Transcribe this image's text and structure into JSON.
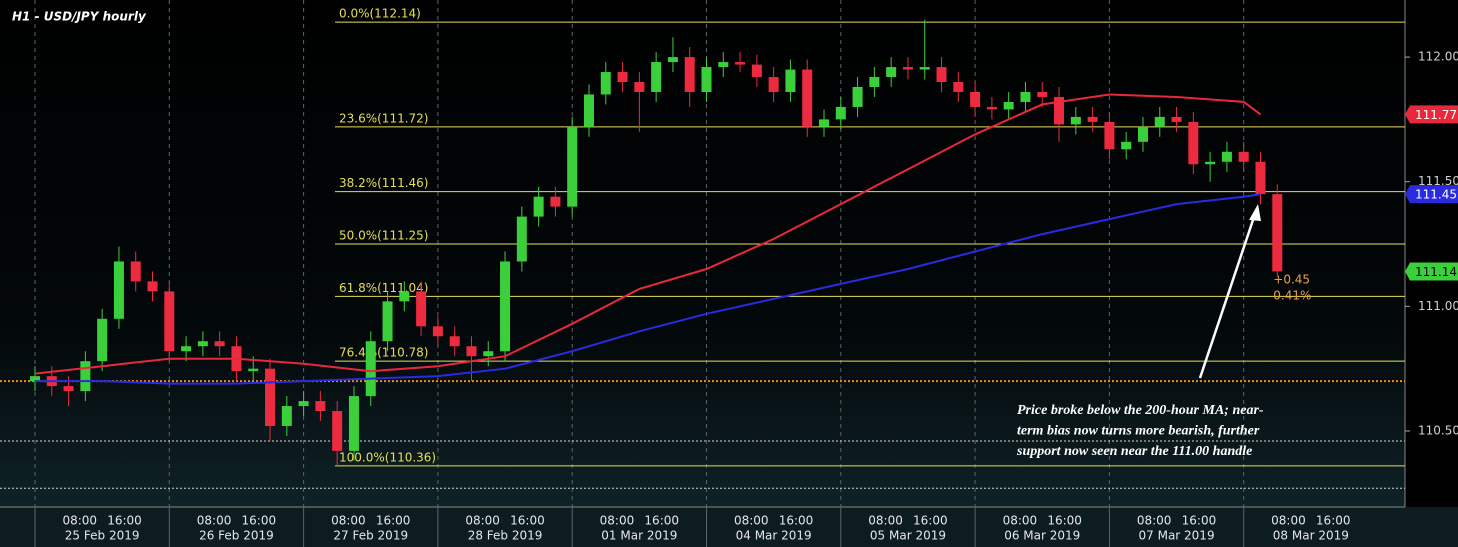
{
  "chart_data": {
    "type": "candlestick",
    "title": "H1 - USD/JPY hourly",
    "days": [
      "25 Feb 2019",
      "26 Feb 2019",
      "27 Feb 2019",
      "28 Feb 2019",
      "01 Mar 2019",
      "04 Mar 2019",
      "05 Mar 2019",
      "06 Mar 2019",
      "07 Mar 2019",
      "08 Mar 2019"
    ],
    "hour_ticks": [
      "08:00",
      "16:00"
    ],
    "x": [
      "25 Feb 2019 00:00",
      "25 Feb 2019 03:00",
      "25 Feb 2019 06:00",
      "25 Feb 2019 09:00",
      "25 Feb 2019 12:00",
      "25 Feb 2019 15:00",
      "25 Feb 2019 18:00",
      "25 Feb 2019 21:00",
      "26 Feb 2019 00:00",
      "26 Feb 2019 03:00",
      "26 Feb 2019 06:00",
      "26 Feb 2019 09:00",
      "26 Feb 2019 12:00",
      "26 Feb 2019 15:00",
      "26 Feb 2019 18:00",
      "26 Feb 2019 21:00",
      "27 Feb 2019 00:00",
      "27 Feb 2019 03:00",
      "27 Feb 2019 06:00",
      "27 Feb 2019 09:00",
      "27 Feb 2019 12:00",
      "27 Feb 2019 15:00",
      "27 Feb 2019 18:00",
      "27 Feb 2019 21:00",
      "28 Feb 2019 00:00",
      "28 Feb 2019 03:00",
      "28 Feb 2019 06:00",
      "28 Feb 2019 09:00",
      "28 Feb 2019 12:00",
      "28 Feb 2019 15:00",
      "28 Feb 2019 18:00",
      "28 Feb 2019 21:00",
      "01 Mar 2019 00:00",
      "01 Mar 2019 03:00",
      "01 Mar 2019 06:00",
      "01 Mar 2019 09:00",
      "01 Mar 2019 12:00",
      "01 Mar 2019 15:00",
      "01 Mar 2019 18:00",
      "01 Mar 2019 21:00",
      "04 Mar 2019 00:00",
      "04 Mar 2019 03:00",
      "04 Mar 2019 06:00",
      "04 Mar 2019 09:00",
      "04 Mar 2019 12:00",
      "04 Mar 2019 15:00",
      "04 Mar 2019 18:00",
      "04 Mar 2019 21:00",
      "05 Mar 2019 00:00",
      "05 Mar 2019 03:00",
      "05 Mar 2019 06:00",
      "05 Mar 2019 09:00",
      "05 Mar 2019 12:00",
      "05 Mar 2019 15:00",
      "05 Mar 2019 18:00",
      "05 Mar 2019 21:00",
      "06 Mar 2019 00:00",
      "06 Mar 2019 03:00",
      "06 Mar 2019 06:00",
      "06 Mar 2019 09:00",
      "06 Mar 2019 12:00",
      "06 Mar 2019 15:00",
      "06 Mar 2019 18:00",
      "06 Mar 2019 21:00",
      "07 Mar 2019 00:00",
      "07 Mar 2019 03:00",
      "07 Mar 2019 06:00",
      "07 Mar 2019 09:00",
      "07 Mar 2019 12:00",
      "07 Mar 2019 15:00",
      "07 Mar 2019 18:00",
      "07 Mar 2019 21:00",
      "08 Mar 2019 00:00",
      "08 Mar 2019 03:00",
      "08 Mar 2019 06:00"
    ],
    "open": [
      110.7,
      110.72,
      110.68,
      110.66,
      110.78,
      110.95,
      111.18,
      111.1,
      111.06,
      110.82,
      110.84,
      110.86,
      110.84,
      110.74,
      110.75,
      110.52,
      110.6,
      110.62,
      110.58,
      110.42,
      110.64,
      110.86,
      111.02,
      111.06,
      110.92,
      110.88,
      110.84,
      110.8,
      110.82,
      111.18,
      111.36,
      111.44,
      111.4,
      111.72,
      111.85,
      111.94,
      111.9,
      111.86,
      111.98,
      112.0,
      111.86,
      111.96,
      111.98,
      111.97,
      111.92,
      111.86,
      111.95,
      111.72,
      111.75,
      111.8,
      111.88,
      111.92,
      111.96,
      111.95,
      111.96,
      111.9,
      111.86,
      111.8,
      111.79,
      111.82,
      111.86,
      111.84,
      111.73,
      111.76,
      111.74,
      111.63,
      111.66,
      111.72,
      111.76,
      111.74,
      111.57,
      111.58,
      111.62,
      111.58,
      111.45
    ],
    "high": [
      110.76,
      110.76,
      110.72,
      110.82,
      110.99,
      111.24,
      111.22,
      111.14,
      111.1,
      110.88,
      110.9,
      110.9,
      110.88,
      110.8,
      110.79,
      110.64,
      110.66,
      110.66,
      110.62,
      110.68,
      110.9,
      111.06,
      111.1,
      111.1,
      110.96,
      110.92,
      110.88,
      110.86,
      111.22,
      111.4,
      111.48,
      111.48,
      111.76,
      111.89,
      111.98,
      111.98,
      111.94,
      112.02,
      112.08,
      112.04,
      112.0,
      112.02,
      112.02,
      112.01,
      111.96,
      111.99,
      111.99,
      111.79,
      111.84,
      111.92,
      111.96,
      112.0,
      112.0,
      112.15,
      112.0,
      111.94,
      111.9,
      111.84,
      111.86,
      111.9,
      111.9,
      111.88,
      111.8,
      111.8,
      111.78,
      111.7,
      111.76,
      111.8,
      111.8,
      111.78,
      111.62,
      111.66,
      111.66,
      111.62,
      111.49
    ],
    "low": [
      110.66,
      110.64,
      110.6,
      110.62,
      110.74,
      110.91,
      111.06,
      111.02,
      110.78,
      110.78,
      110.8,
      110.8,
      110.7,
      110.7,
      110.46,
      110.48,
      110.56,
      110.54,
      110.36,
      110.38,
      110.6,
      110.82,
      110.98,
      110.88,
      110.84,
      110.8,
      110.7,
      110.76,
      110.78,
      111.14,
      111.32,
      111.36,
      111.36,
      111.68,
      111.81,
      111.86,
      111.7,
      111.82,
      111.94,
      111.8,
      111.82,
      111.92,
      111.94,
      111.88,
      111.82,
      111.82,
      111.68,
      111.68,
      111.71,
      111.76,
      111.84,
      111.88,
      111.91,
      111.91,
      111.86,
      111.82,
      111.76,
      111.75,
      111.75,
      111.78,
      111.8,
      111.66,
      111.69,
      111.7,
      111.59,
      111.59,
      111.62,
      111.68,
      111.7,
      111.53,
      111.5,
      111.54,
      111.54,
      111.41,
      111.12
    ],
    "close": [
      110.72,
      110.68,
      110.66,
      110.78,
      110.95,
      111.18,
      111.1,
      111.06,
      110.82,
      110.84,
      110.86,
      110.84,
      110.74,
      110.75,
      110.52,
      110.6,
      110.62,
      110.58,
      110.42,
      110.64,
      110.86,
      111.02,
      111.06,
      110.92,
      110.88,
      110.84,
      110.8,
      110.82,
      111.18,
      111.36,
      111.44,
      111.4,
      111.72,
      111.85,
      111.94,
      111.9,
      111.86,
      111.98,
      112.0,
      111.86,
      111.96,
      111.98,
      111.97,
      111.92,
      111.86,
      111.95,
      111.72,
      111.75,
      111.8,
      111.88,
      111.92,
      111.96,
      111.95,
      111.96,
      111.9,
      111.86,
      111.8,
      111.79,
      111.82,
      111.86,
      111.84,
      111.73,
      111.76,
      111.74,
      111.63,
      111.66,
      111.72,
      111.76,
      111.74,
      111.57,
      111.58,
      111.62,
      111.58,
      111.45,
      111.14
    ],
    "up_color": "#3ccf3c",
    "down_color": "#ec2a40",
    "tag": 111.14,
    "tag_color": "#3ccf3c",
    "change_labels": [
      "+0.45",
      "0.41%"
    ],
    "series": [
      {
        "type": "line",
        "color": "#e8283c",
        "tag": 111.77,
        "x": [
          "25 Feb 2019 00:00",
          "25 Feb 2019 12:00",
          "26 Feb 2019 00:00",
          "26 Feb 2019 12:00",
          "27 Feb 2019 00:00",
          "27 Feb 2019 12:00",
          "28 Feb 2019 00:00",
          "28 Feb 2019 12:00",
          "01 Mar 2019 00:00",
          "01 Mar 2019 12:00",
          "04 Mar 2019 00:00",
          "04 Mar 2019 12:00",
          "05 Mar 2019 00:00",
          "05 Mar 2019 12:00",
          "06 Mar 2019 00:00",
          "06 Mar 2019 12:00",
          "07 Mar 2019 00:00",
          "07 Mar 2019 12:00",
          "08 Mar 2019 00:00",
          "08 Mar 2019 03:00"
        ],
        "values": [
          110.73,
          110.76,
          110.79,
          110.79,
          110.77,
          110.74,
          110.76,
          110.8,
          110.93,
          111.07,
          111.15,
          111.27,
          111.41,
          111.55,
          111.69,
          111.81,
          111.85,
          111.84,
          111.82,
          111.77
        ]
      },
      {
        "type": "line",
        "color": "#2a2ae0",
        "tag": 111.45,
        "x": [
          "25 Feb 2019 00:00",
          "25 Feb 2019 12:00",
          "26 Feb 2019 00:00",
          "26 Feb 2019 12:00",
          "27 Feb 2019 00:00",
          "27 Feb 2019 12:00",
          "28 Feb 2019 00:00",
          "28 Feb 2019 12:00",
          "01 Mar 2019 00:00",
          "01 Mar 2019 12:00",
          "04 Mar 2019 00:00",
          "04 Mar 2019 12:00",
          "05 Mar 2019 00:00",
          "05 Mar 2019 12:00",
          "06 Mar 2019 00:00",
          "06 Mar 2019 12:00",
          "07 Mar 2019 00:00",
          "07 Mar 2019 12:00",
          "08 Mar 2019 00:00",
          "08 Mar 2019 03:00"
        ],
        "values": [
          110.7,
          110.7,
          110.69,
          110.69,
          110.7,
          110.71,
          110.72,
          110.75,
          110.82,
          110.9,
          110.97,
          111.03,
          111.09,
          111.15,
          111.22,
          111.29,
          111.35,
          111.41,
          111.44,
          111.45
        ]
      }
    ],
    "fib_color": "#e6de5a",
    "fib_levels": [
      {
        "label": "0.0%(112.14)",
        "value": 112.14
      },
      {
        "label": "23.6%(111.72)",
        "value": 111.72
      },
      {
        "label": "38.2%(111.46)",
        "value": 111.46
      },
      {
        "label": "50.0%(111.25)",
        "value": 111.25
      },
      {
        "label": "61.8%(111.04)",
        "value": 111.04
      },
      {
        "label": "76.4%(110.78)",
        "value": 110.78
      },
      {
        "label": "100.0%(110.36)",
        "value": 110.36
      }
    ],
    "reference_lines": [
      {
        "value": 110.7,
        "color": "#f08a1c"
      },
      {
        "value": 110.46,
        "color": "#d8d8d8"
      },
      {
        "value": 110.27,
        "color": "#d8d8d8"
      }
    ],
    "annotation": [
      "Price broke below the 200-hour MA; near-",
      "term bias now turns more bearish, further",
      "support now seen near the 111.00 handle"
    ],
    "ylim": [
      110.195,
      112.229
    ],
    "yticks": [
      {
        "value": 110.5,
        "label": "110.50"
      },
      {
        "value": 111,
        "label": "111.00"
      },
      {
        "value": 111.5,
        "label": "111.50"
      },
      {
        "value": 112,
        "label": "112.00"
      }
    ]
  }
}
